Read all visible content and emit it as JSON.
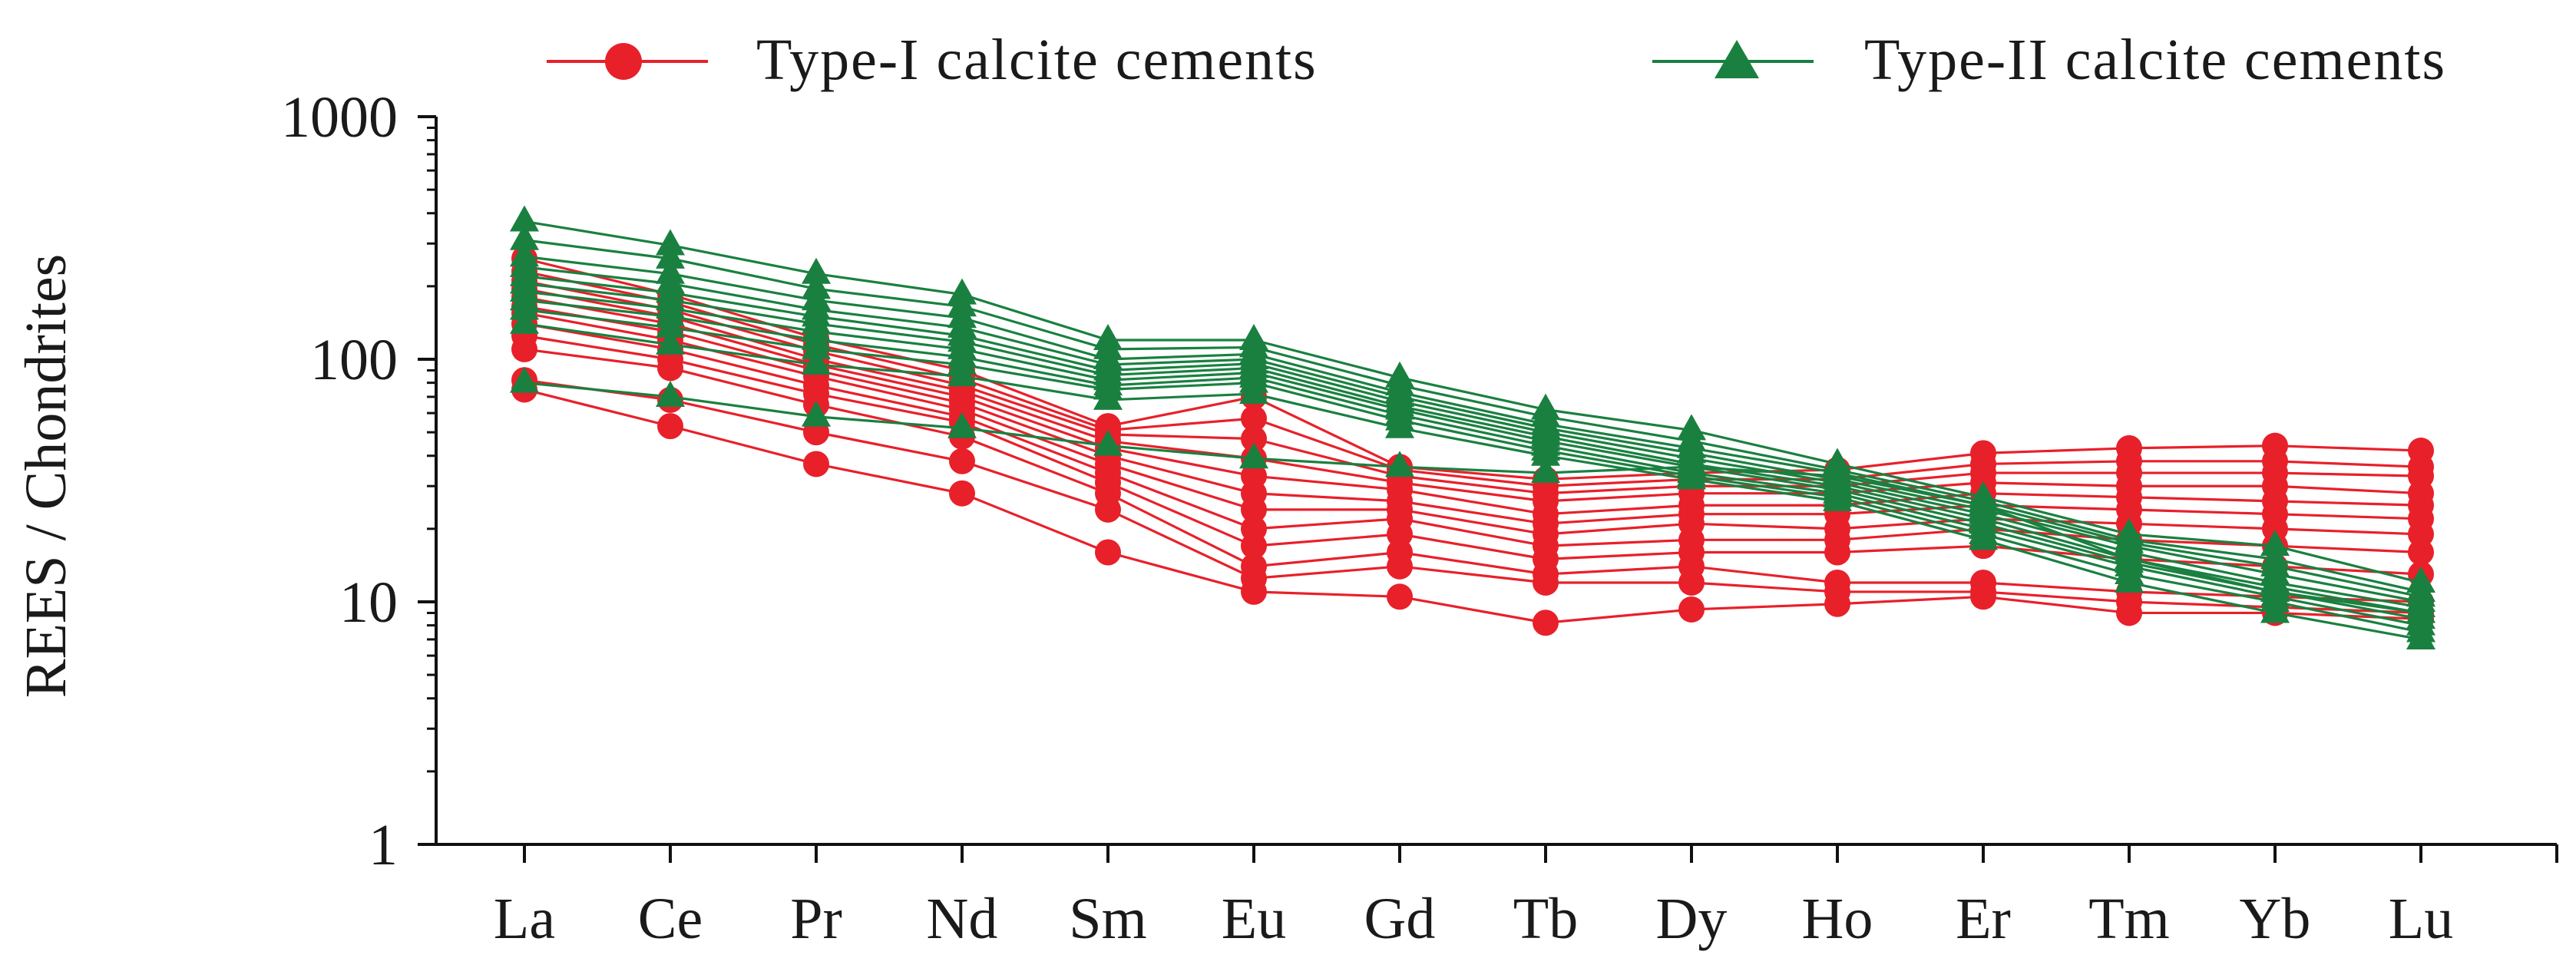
{
  "chart_data": {
    "type": "line",
    "title": "",
    "xlabel": "",
    "ylabel": "REES / Chondrites",
    "y_scale": "log",
    "ylim": [
      1,
      1000
    ],
    "y_ticks": [
      "1",
      "10",
      "100",
      "1000"
    ],
    "categories": [
      "La",
      "Ce",
      "Pr",
      "Nd",
      "Sm",
      "Eu",
      "Gd",
      "Tb",
      "Dy",
      "Ho",
      "Er",
      "Tm",
      "Yb",
      "Lu"
    ],
    "grid": false,
    "legend_position": "top",
    "legend": [
      {
        "label": "Type-I calcite cements",
        "color": "#e8202a",
        "marker": "circle"
      },
      {
        "label": "Type-II calcite cements",
        "color": "#1a8040",
        "marker": "triangle"
      }
    ],
    "series": [
      {
        "group": "Type-I calcite cements",
        "values": [
          75,
          53,
          37,
          28,
          16,
          11,
          10.5,
          8.2,
          9.3,
          9.8,
          10.5,
          9,
          9,
          8.5
        ]
      },
      {
        "group": "Type-I calcite cements",
        "values": [
          82,
          68,
          50,
          38,
          24,
          12.5,
          14,
          12,
          12,
          11,
          11,
          10,
          9.5,
          9
        ]
      },
      {
        "group": "Type-I calcite cements",
        "values": [
          110,
          92,
          65,
          48,
          28,
          14,
          16,
          13,
          14,
          12,
          12,
          11,
          10.5,
          10
        ]
      },
      {
        "group": "Type-I calcite cements",
        "values": [
          125,
          100,
          72,
          55,
          31,
          17,
          19,
          15,
          16,
          16,
          17,
          15,
          14,
          13
        ]
      },
      {
        "group": "Type-I calcite cements",
        "values": [
          140,
          110,
          78,
          58,
          34,
          20,
          22,
          17,
          18,
          18,
          20,
          18,
          17,
          16
        ]
      },
      {
        "group": "Type-I calcite cements",
        "values": [
          155,
          120,
          85,
          62,
          37,
          24,
          24,
          19,
          21,
          20,
          22,
          21,
          20,
          19
        ]
      },
      {
        "group": "Type-I calcite cements",
        "values": [
          165,
          130,
          90,
          66,
          40,
          28,
          26,
          21,
          23,
          23,
          25,
          24,
          23,
          22
        ]
      },
      {
        "group": "Type-I calcite cements",
        "values": [
          180,
          140,
          95,
          70,
          43,
          33,
          29,
          23,
          25,
          25,
          28,
          27,
          26,
          25
        ]
      },
      {
        "group": "Type-I calcite cements",
        "values": [
          195,
          150,
          100,
          74,
          46,
          39,
          31,
          26,
          28,
          28,
          31,
          30,
          30,
          28
        ]
      },
      {
        "group": "Type-I calcite cements",
        "values": [
          210,
          160,
          108,
          78,
          49,
          47,
          33,
          28,
          30,
          30,
          34,
          34,
          34,
          33
        ]
      },
      {
        "group": "Type-I calcite cements",
        "values": [
          230,
          172,
          115,
          83,
          51,
          57,
          35,
          30,
          32,
          32,
          37,
          38,
          38,
          36
        ]
      },
      {
        "group": "Type-I calcite cements",
        "values": [
          260,
          185,
          122,
          90,
          53,
          70,
          36,
          32,
          34,
          35,
          41,
          43,
          44,
          42
        ]
      },
      {
        "group": "Type-II calcite cements",
        "values": [
          80,
          70,
          58,
          52,
          44,
          39,
          36,
          34,
          36,
          33,
          25,
          15,
          11,
          9
        ]
      },
      {
        "group": "Type-II calcite cements",
        "values": [
          140,
          115,
          95,
          85,
          68,
          72,
          52,
          40,
          32,
          26,
          18,
          12,
          9,
          7
        ]
      },
      {
        "group": "Type-II calcite cements",
        "values": [
          160,
          135,
          110,
          95,
          75,
          80,
          56,
          42,
          33,
          27,
          19,
          13,
          10,
          7.5
        ]
      },
      {
        "group": "Type-II calcite cements",
        "values": [
          175,
          150,
          120,
          102,
          78,
          84,
          59,
          44,
          34,
          28,
          20,
          14,
          10.5,
          8
        ]
      },
      {
        "group": "Type-II calcite cements",
        "values": [
          190,
          162,
          130,
          110,
          82,
          88,
          62,
          46,
          36,
          29,
          21,
          14.5,
          11,
          8.5
        ]
      },
      {
        "group": "Type-II calcite cements",
        "values": [
          205,
          175,
          140,
          118,
          86,
          92,
          64,
          48,
          37,
          30,
          22,
          15,
          11.5,
          9
        ]
      },
      {
        "group": "Type-II calcite cements",
        "values": [
          220,
          188,
          150,
          125,
          90,
          96,
          67,
          50,
          39,
          31,
          23,
          16,
          12,
          9.5
        ]
      },
      {
        "group": "Type-II calcite cements",
        "values": [
          240,
          205,
          160,
          135,
          95,
          100,
          70,
          52,
          41,
          32,
          24,
          17,
          13,
          10
        ]
      },
      {
        "group": "Type-II calcite cements",
        "values": [
          265,
          225,
          175,
          148,
          100,
          105,
          73,
          54,
          43,
          34,
          25,
          17.5,
          14,
          10.5
        ]
      },
      {
        "group": "Type-II calcite cements",
        "values": [
          310,
          260,
          195,
          165,
          110,
          112,
          78,
          58,
          46,
          35,
          26,
          18,
          15,
          11
        ]
      },
      {
        "group": "Type-II calcite cements",
        "values": [
          370,
          295,
          225,
          185,
          120,
          120,
          84,
          62,
          51,
          37,
          27,
          19,
          17,
          12
        ]
      }
    ]
  }
}
